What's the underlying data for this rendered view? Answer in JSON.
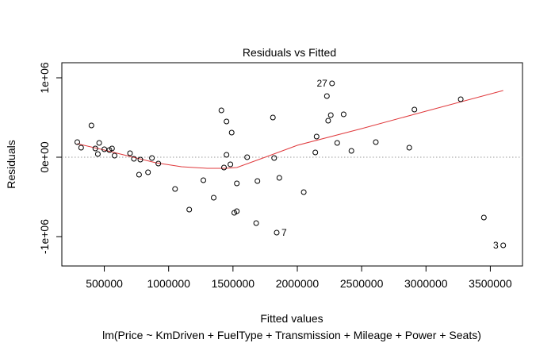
{
  "chart_data": {
    "type": "scatter",
    "title": "Residuals vs Fitted",
    "xlabel": "Fitted values",
    "subtitle": "lm(Price ~ KmDriven + FuelType + Transmission + Mileage + Power + Seats)",
    "ylabel": "Residuals",
    "xlim": [
      170000,
      3750000
    ],
    "ylim": [
      -1370000,
      1190000
    ],
    "x_ticks": [
      {
        "value": 500000,
        "label": "500000"
      },
      {
        "value": 1000000,
        "label": "1000000"
      },
      {
        "value": 1500000,
        "label": "1500000"
      },
      {
        "value": 2000000,
        "label": "2000000"
      },
      {
        "value": 2500000,
        "label": "2500000"
      },
      {
        "value": 3000000,
        "label": "3000000"
      },
      {
        "value": 3500000,
        "label": "3500000"
      }
    ],
    "y_ticks": [
      {
        "value": 1000000,
        "label": "1e+06"
      },
      {
        "value": 0,
        "label": "0e+00"
      },
      {
        "value": -1000000,
        "label": "-1e+06"
      }
    ],
    "reference_line_y": 0,
    "colors": {
      "points": "#000000",
      "smoother": "#e0393c",
      "reference": "#999999"
    },
    "points": [
      {
        "x": 290000,
        "y": 190000
      },
      {
        "x": 320000,
        "y": 120000
      },
      {
        "x": 400000,
        "y": 400000
      },
      {
        "x": 430000,
        "y": 110000
      },
      {
        "x": 450000,
        "y": 40000
      },
      {
        "x": 460000,
        "y": 180000
      },
      {
        "x": 500000,
        "y": 100000
      },
      {
        "x": 540000,
        "y": 90000
      },
      {
        "x": 560000,
        "y": 110000
      },
      {
        "x": 580000,
        "y": 20000
      },
      {
        "x": 700000,
        "y": 50000
      },
      {
        "x": 730000,
        "y": -20000
      },
      {
        "x": 770000,
        "y": -220000
      },
      {
        "x": 780000,
        "y": -30000
      },
      {
        "x": 840000,
        "y": -190000
      },
      {
        "x": 870000,
        "y": -10000
      },
      {
        "x": 920000,
        "y": -80000
      },
      {
        "x": 1050000,
        "y": -400000
      },
      {
        "x": 1160000,
        "y": -660000
      },
      {
        "x": 1270000,
        "y": -290000
      },
      {
        "x": 1350000,
        "y": -510000
      },
      {
        "x": 1410000,
        "y": 590000
      },
      {
        "x": 1430000,
        "y": -130000
      },
      {
        "x": 1450000,
        "y": 30000
      },
      {
        "x": 1450000,
        "y": 450000
      },
      {
        "x": 1480000,
        "y": -90000
      },
      {
        "x": 1490000,
        "y": 310000
      },
      {
        "x": 1510000,
        "y": -700000
      },
      {
        "x": 1530000,
        "y": -680000
      },
      {
        "x": 1530000,
        "y": -330000
      },
      {
        "x": 1610000,
        "y": 0
      },
      {
        "x": 1680000,
        "y": -830000
      },
      {
        "x": 1690000,
        "y": -300000
      },
      {
        "x": 1810000,
        "y": 500000
      },
      {
        "x": 1820000,
        "y": -10000
      },
      {
        "x": 1840000,
        "y": -950000
      },
      {
        "x": 1860000,
        "y": -260000
      },
      {
        "x": 2050000,
        "y": -440000
      },
      {
        "x": 2140000,
        "y": 60000
      },
      {
        "x": 2150000,
        "y": 260000
      },
      {
        "x": 2230000,
        "y": 770000
      },
      {
        "x": 2240000,
        "y": 460000
      },
      {
        "x": 2260000,
        "y": 530000
      },
      {
        "x": 2270000,
        "y": 930000
      },
      {
        "x": 2310000,
        "y": 180000
      },
      {
        "x": 2360000,
        "y": 540000
      },
      {
        "x": 2420000,
        "y": 80000
      },
      {
        "x": 2610000,
        "y": 190000
      },
      {
        "x": 2870000,
        "y": 120000
      },
      {
        "x": 2910000,
        "y": 600000
      },
      {
        "x": 3270000,
        "y": 730000
      },
      {
        "x": 3450000,
        "y": -760000
      },
      {
        "x": 3600000,
        "y": -1110000
      }
    ],
    "smoother": [
      {
        "x": 290000,
        "y": 170000
      },
      {
        "x": 500000,
        "y": 90000
      },
      {
        "x": 700000,
        "y": 10000
      },
      {
        "x": 900000,
        "y": -70000
      },
      {
        "x": 1100000,
        "y": -120000
      },
      {
        "x": 1300000,
        "y": -140000
      },
      {
        "x": 1440000,
        "y": -140000
      },
      {
        "x": 1530000,
        "y": -130000
      },
      {
        "x": 1750000,
        "y": 0
      },
      {
        "x": 2000000,
        "y": 150000
      },
      {
        "x": 2500000,
        "y": 360000
      },
      {
        "x": 3000000,
        "y": 580000
      },
      {
        "x": 3600000,
        "y": 840000
      }
    ],
    "annotations": [
      {
        "label": "27",
        "x": 2270000,
        "y": 930000,
        "anchor": "end"
      },
      {
        "label": "7",
        "x": 1840000,
        "y": -950000,
        "anchor": "start"
      },
      {
        "label": "3",
        "x": 3600000,
        "y": -1110000,
        "anchor": "end"
      }
    ]
  }
}
